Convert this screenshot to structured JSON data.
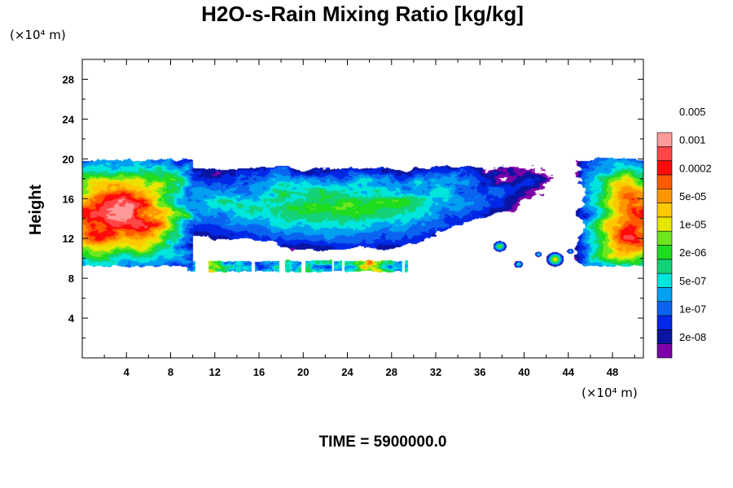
{
  "chart_data": {
    "type": "heatmap",
    "title": "H2O-s-Rain Mixing Ratio [kg/kg]",
    "ylabel": "Height",
    "y_unit": "(×10⁴ m)",
    "x_unit": "(×10⁴ m)",
    "x_ticks": [
      4,
      8,
      12,
      16,
      20,
      24,
      28,
      32,
      36,
      40,
      44,
      48
    ],
    "y_ticks": [
      4,
      8,
      12,
      16,
      20,
      24,
      28
    ],
    "xlim": [
      0,
      50.8
    ],
    "ylim": [
      0,
      30
    ],
    "grid": false,
    "colorbar": {
      "levels": [
        "2e-08",
        "1e-07",
        "5e-07",
        "2e-06",
        "1e-05",
        "5e-05",
        "0.0002",
        "0.001",
        "0.005"
      ],
      "colors": [
        "#7d00a8",
        "#0a14a0",
        "#0028e6",
        "#0a64f0",
        "#00a0f0",
        "#00e6dc",
        "#14d278",
        "#1edc1e",
        "#6ee61e",
        "#e6e600",
        "#ffc800",
        "#ff9600",
        "#ff5a00",
        "#ff0a0a",
        "#ff4646",
        "#ff9a9a"
      ]
    },
    "regions": [
      {
        "name": "left-cloud",
        "x": [
          0,
          9.5
        ],
        "y": [
          9.3,
          20
        ],
        "peak_level": 14
      },
      {
        "name": "upper-anvil",
        "x": [
          9.5,
          44
        ],
        "y": [
          11,
          19.5
        ],
        "peak_level": 8
      },
      {
        "name": "lower-band",
        "x": [
          9,
          29.5
        ],
        "y": [
          8.6,
          9.8
        ],
        "peak_level": 13
      },
      {
        "name": "right-cloud",
        "x": [
          45.5,
          50.8
        ],
        "y": [
          9.2,
          20.3
        ],
        "peak_level": 15
      },
      {
        "name": "scattered-cells",
        "x": [
          37.5,
          44.5
        ],
        "y": [
          9.2,
          11.5
        ],
        "peak_level": 9
      }
    ]
  },
  "footer": "TIME = 5900000.0"
}
